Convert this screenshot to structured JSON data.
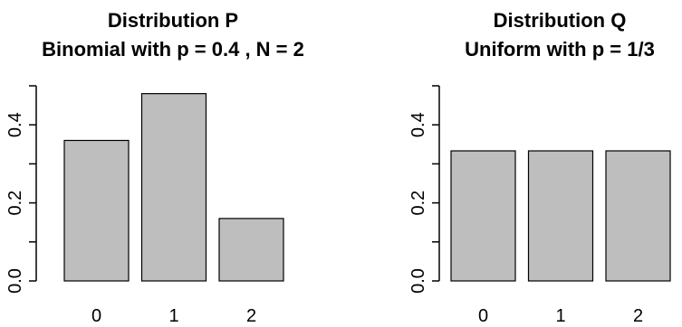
{
  "chart_data": [
    {
      "type": "bar",
      "title": "Distribution P",
      "subtitle": "Binomial with p = 0.4 , N = 2",
      "categories": [
        "0",
        "1",
        "2"
      ],
      "values": [
        0.36,
        0.48,
        0.16
      ],
      "ylim": [
        0,
        0.5
      ],
      "yticks": [
        "0.0",
        "0.2",
        "0.4"
      ],
      "bar_color": "#bebebe",
      "grid": false
    },
    {
      "type": "bar",
      "title": "Distribution Q",
      "subtitle": "Uniform with p = 1/3",
      "categories": [
        "0",
        "1",
        "2"
      ],
      "values": [
        0.3333,
        0.3333,
        0.3333
      ],
      "ylim": [
        0,
        0.5
      ],
      "yticks": [
        "0.0",
        "0.2",
        "0.4"
      ],
      "bar_color": "#bebebe",
      "grid": false
    }
  ]
}
